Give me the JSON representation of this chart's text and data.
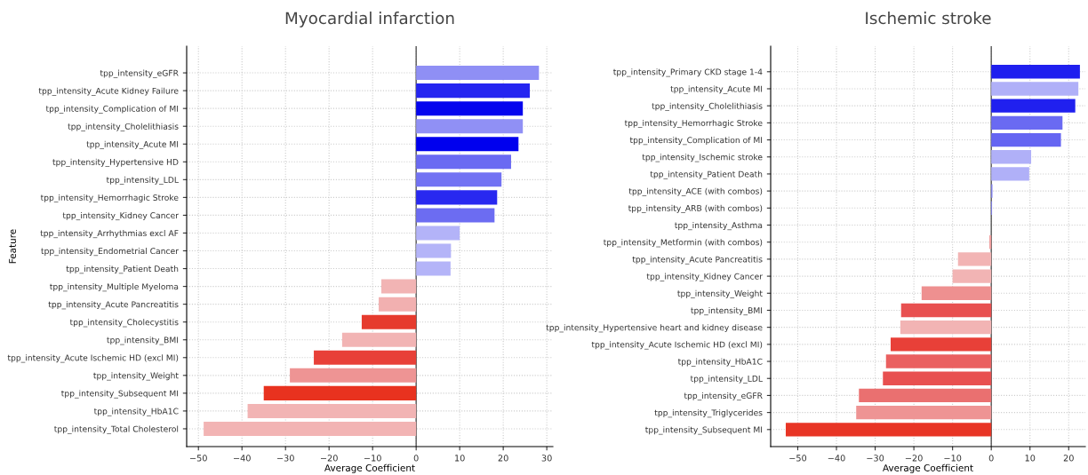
{
  "chart_data": [
    {
      "type": "bar",
      "orientation": "horizontal",
      "title": "Myocardial infarction",
      "xlabel": "Average Coefficient",
      "ylabel": "Feature",
      "categories": [
        "tpp_intensity_eGFR",
        "tpp_intensity_Acute Kidney Failure",
        "tpp_intensity_Complication of MI",
        "tpp_intensity_Cholelithiasis",
        "tpp_intensity_Acute MI",
        "tpp_intensity_Hypertensive HD",
        "tpp_intensity_LDL",
        "tpp_intensity_Hemorrhagic Stroke",
        "tpp_intensity_Kidney Cancer",
        "tpp_intensity_Arrhythmias excl AF",
        "tpp_intensity_Endometrial Cancer",
        "tpp_intensity_Patient Death",
        "tpp_intensity_Multiple Myeloma",
        "tpp_intensity_Acute Pancreatitis",
        "tpp_intensity_Cholecystitis",
        "tpp_intensity_BMI",
        "tpp_intensity_Acute Ischemic HD (excl MI)",
        "tpp_intensity_Weight",
        "tpp_intensity_Subsequent MI",
        "tpp_intensity_HbA1C",
        "tpp_intensity_Total Cholesterol"
      ],
      "values": [
        28.2,
        26.1,
        24.5,
        24.5,
        23.5,
        21.8,
        19.6,
        18.6,
        18.0,
        10.0,
        8.0,
        7.9,
        -8.0,
        -8.6,
        -12.5,
        -17.0,
        -23.5,
        -29.0,
        -35.0,
        -38.7,
        -48.8
      ],
      "colors": [
        "#8f8ff5",
        "#2525f0",
        "#0505ee",
        "#9090f5",
        "#0000ee",
        "#6a6af2",
        "#7272f3",
        "#2828f0",
        "#6c6cf2",
        "#b3b3f8",
        "#b4b4f8",
        "#b4b4f8",
        "#f2b4b4",
        "#f2b0b0",
        "#e63b2e",
        "#f2b4b4",
        "#e84038",
        "#ee9494",
        "#e8321f",
        "#f2b4b4",
        "#f2b4b4"
      ],
      "xlim": [
        -52.7,
        31.4
      ],
      "xticks": [
        {
          "value": -50,
          "label": "−50"
        },
        {
          "value": -40,
          "label": "−40"
        },
        {
          "value": -30,
          "label": "−30"
        },
        {
          "value": -20,
          "label": "−20"
        },
        {
          "value": -10,
          "label": "−10"
        },
        0,
        10,
        20,
        30
      ],
      "ref_lines": [
        {
          "axis": "x",
          "value": 0,
          "color": "#555555"
        }
      ],
      "grid": true
    },
    {
      "type": "bar",
      "orientation": "horizontal",
      "title": "Ischemic stroke",
      "xlabel": "Average Coefficient",
      "categories": [
        "tpp_intensity_Primary CKD stage 1-4",
        "tpp_intensity_Acute MI",
        "tpp_intensity_Cholelithiasis",
        "tpp_intensity_Hemorrhagic Stroke",
        "tpp_intensity_Complication of MI",
        "tpp_intensity_Ischemic stroke",
        "tpp_intensity_Patient Death",
        "tpp_intensity_ACE (with combos)",
        "tpp_intensity_ARB (with combos)",
        "tpp_intensity_Asthma",
        "tpp_intensity_Metformin (with combos)",
        "tpp_intensity_Acute Pancreatitis",
        "tpp_intensity_Kidney Cancer",
        "tpp_intensity_Weight",
        "tpp_intensity_BMI",
        "tpp_intensity_Hypertensive heart and kidney disease",
        "tpp_intensity_Acute Ischemic HD (excl MI)",
        "tpp_intensity_HbA1C",
        "tpp_intensity_LDL",
        "tpp_intensity_eGFR",
        "tpp_intensity_Triglycerides",
        "tpp_intensity_Subsequent MI"
      ],
      "values": [
        22.9,
        22.5,
        21.7,
        18.4,
        18.0,
        10.3,
        9.8,
        0.3,
        0.2,
        0,
        -0.5,
        -8.6,
        -10.0,
        -18.0,
        -23.3,
        -23.5,
        -26.0,
        -27.2,
        -28.0,
        -34.2,
        -34.9,
        -53.1
      ],
      "colors": [
        "#1f1fef",
        "#b0b0f8",
        "#2020ef",
        "#6a6af2",
        "#6565f2",
        "#b0b0f8",
        "#b0b0f8",
        "#8080f4",
        "#8080f4",
        "#cccccc",
        "#f0a0a0",
        "#f2b4b4",
        "#f2b4b4",
        "#ee9090",
        "#e85050",
        "#f2b4b4",
        "#e84038",
        "#ea6060",
        "#e85050",
        "#ea7070",
        "#ee9494",
        "#e83525"
      ],
      "xlim": [
        -57,
        24.3
      ],
      "xticks": [
        {
          "value": -50,
          "label": "−50"
        },
        {
          "value": -40,
          "label": "−40"
        },
        {
          "value": -30,
          "label": "−30"
        },
        {
          "value": -20,
          "label": "−20"
        },
        {
          "value": -10,
          "label": "−10"
        },
        0,
        10,
        20
      ],
      "ref_lines": [
        {
          "axis": "x",
          "value": 0,
          "color": "#555555"
        }
      ],
      "grid": true
    }
  ]
}
